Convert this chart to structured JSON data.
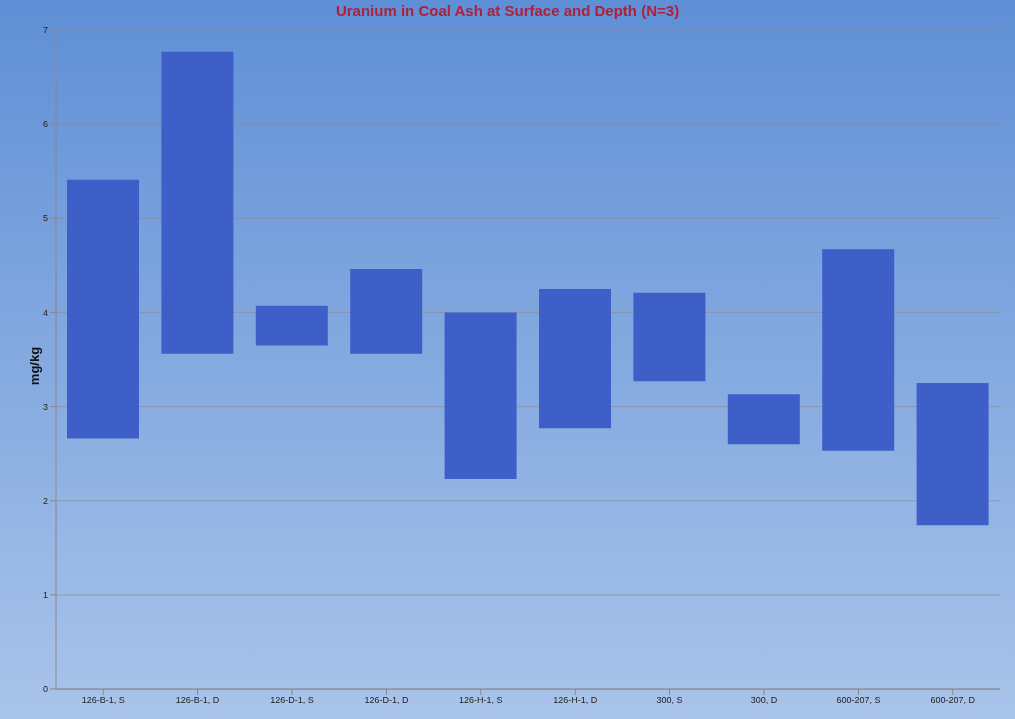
{
  "chart_data": {
    "type": "bar",
    "title": "Uranium in Coal Ash at Surface and Depth (N=3)",
    "ylabel": "mg/kg",
    "categories": [
      "126-B-1, S",
      "126-B-1, D",
      "126-D-1, S",
      "126-D-1, D",
      "126-H-1, S",
      "126-H-1, D",
      "300, S",
      "300, D",
      "600-207, S",
      "600-207, D"
    ],
    "base": [
      2.66,
      3.56,
      3.65,
      3.56,
      2.23,
      2.77,
      3.27,
      2.6,
      2.53,
      1.74
    ],
    "values": [
      2.75,
      3.21,
      0.42,
      0.9,
      1.77,
      1.48,
      0.94,
      0.53,
      2.14,
      1.51
    ],
    "color": "#3f5fc8",
    "ylim": [
      0,
      7
    ],
    "yticks": [
      0,
      1,
      2,
      3,
      4,
      5,
      6,
      7
    ],
    "grid": "y"
  }
}
